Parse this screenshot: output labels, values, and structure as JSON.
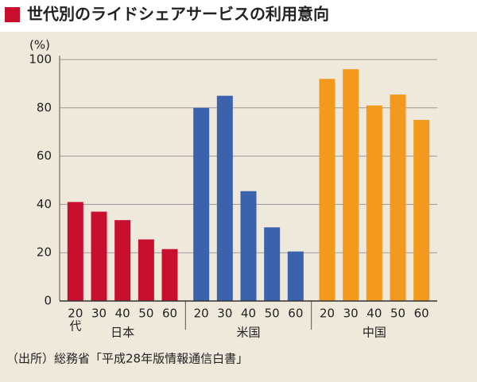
{
  "chart_data": {
    "type": "grouped-bar",
    "title": "世代別のライドシェアサービスの利用意向",
    "y_unit": "(%)",
    "categories": [
      "20",
      "30",
      "40",
      "50",
      "60"
    ],
    "category_suffix": "代",
    "series": [
      {
        "name": "日本",
        "color": "#c8102e",
        "values": [
          41,
          37,
          33.5,
          25.5,
          21.5
        ]
      },
      {
        "name": "米国",
        "color": "#3b63ad",
        "values": [
          80,
          85,
          45.5,
          30.5,
          20.5
        ]
      },
      {
        "name": "中国",
        "color": "#f39a1e",
        "values": [
          92,
          96,
          81,
          85.5,
          75
        ]
      }
    ],
    "ylim": [
      0,
      100
    ],
    "yticks": [
      0,
      20,
      40,
      60,
      80,
      100
    ],
    "grid": true,
    "source": "（出所）総務省「平成28年版情報通信白書」"
  }
}
